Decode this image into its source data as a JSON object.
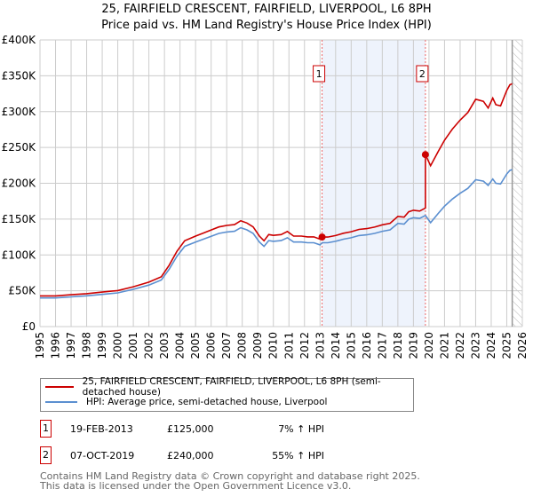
{
  "title_line1": "25, FAIRFIELD CRESCENT, FAIRFIELD, LIVERPOOL, L6 8PH",
  "title_line2": "Price paid vs. HM Land Registry's House Price Index (HPI)",
  "colors": {
    "property": "#cc0000",
    "hpi": "#5b8fd0",
    "shade": "#eef3fc",
    "grid": "#cccccc"
  },
  "legend": [
    {
      "label": "25, FAIRFIELD CRESCENT, FAIRFIELD, LIVERPOOL, L6 8PH (semi-detached house)"
    },
    {
      "label": "HPI: Average price, semi-detached house, Liverpool"
    }
  ],
  "sales": [
    {
      "num": "1",
      "date": "19-FEB-2013",
      "price": "£125,000",
      "hpi": "7% ↑ HPI"
    },
    {
      "num": "2",
      "date": "07-OCT-2019",
      "price": "£240,000",
      "hpi": "55% ↑ HPI"
    }
  ],
  "footer": [
    "Contains HM Land Registry data © Crown copyright and database right 2025.",
    "This data is licensed under the Open Government Licence v3.0."
  ],
  "chart_data": {
    "type": "line",
    "xlim": [
      1995,
      2026
    ],
    "ylim": [
      0,
      400000
    ],
    "x_ticks": [
      "1995",
      "1996",
      "1997",
      "1998",
      "1999",
      "2000",
      "2001",
      "2002",
      "2003",
      "2004",
      "2005",
      "2006",
      "2007",
      "2008",
      "2009",
      "2010",
      "2011",
      "2012",
      "2013",
      "2014",
      "2015",
      "2016",
      "2017",
      "2018",
      "2019",
      "2020",
      "2021",
      "2022",
      "2023",
      "2024",
      "2025",
      "2026"
    ],
    "y_ticks": [
      {
        "v": 0,
        "label": "£0"
      },
      {
        "v": 50000,
        "label": "£50K"
      },
      {
        "v": 100000,
        "label": "£100K"
      },
      {
        "v": 150000,
        "label": "£150K"
      },
      {
        "v": 200000,
        "label": "£200K"
      },
      {
        "v": 250000,
        "label": "£250K"
      },
      {
        "v": 300000,
        "label": "£300K"
      },
      {
        "v": 350000,
        "label": "£350K"
      },
      {
        "v": 400000,
        "label": "£400K"
      }
    ],
    "grid": true,
    "shaded_span": [
      2013.13,
      2019.77
    ],
    "forecast_hatch_from": 2025.35,
    "markers": [
      {
        "label": "1",
        "x": 2013.13,
        "y": 125000
      },
      {
        "label": "2",
        "x": 2019.77,
        "y": 240000
      }
    ],
    "series": [
      {
        "name": "property",
        "x": [
          1995,
          1996,
          1997,
          1998,
          1999,
          2000,
          2001,
          2002,
          2002.8,
          2003.3,
          2003.8,
          2004.3,
          2005,
          2005.5,
          2006,
          2006.5,
          2007,
          2007.5,
          2007.9,
          2008.3,
          2008.7,
          2009.1,
          2009.4,
          2009.7,
          2010,
          2010.5,
          2010.9,
          2011.3,
          2011.8,
          2012.2,
          2012.6,
          2013.0,
          2013.13,
          2013.5,
          2014,
          2014.5,
          2015,
          2015.5,
          2016,
          2016.5,
          2017,
          2017.5,
          2018,
          2018.4,
          2018.7,
          2019,
          2019.4,
          2019.77,
          2019.77,
          2020.1,
          2020.6,
          2021,
          2021.5,
          2022,
          2022.5,
          2023,
          2023.5,
          2023.8,
          2024.1,
          2024.3,
          2024.6,
          2025,
          2025.2,
          2025.35
        ],
        "values": [
          42800,
          42800,
          44400,
          46000,
          48200,
          50300,
          55600,
          62000,
          69600,
          85600,
          104900,
          119800,
          126300,
          130500,
          134800,
          139100,
          141200,
          142300,
          147700,
          144500,
          139100,
          126300,
          119800,
          128400,
          127300,
          128400,
          132700,
          126300,
          126300,
          125200,
          125200,
          122000,
          125000,
          125000,
          127100,
          130300,
          132400,
          135600,
          136700,
          138800,
          142000,
          144200,
          153800,
          152700,
          160200,
          162300,
          161300,
          165500,
          240000,
          224500,
          244600,
          260000,
          275600,
          288000,
          298800,
          317300,
          314300,
          305000,
          318900,
          309600,
          308000,
          329700,
          337500,
          339000
        ]
      },
      {
        "name": "hpi",
        "x": [
          1995,
          1996,
          1997,
          1998,
          1999,
          2000,
          2001,
          2002,
          2002.8,
          2003.3,
          2003.8,
          2004.3,
          2005,
          2005.5,
          2006,
          2006.5,
          2007,
          2007.5,
          2007.9,
          2008.3,
          2008.7,
          2009.1,
          2009.4,
          2009.7,
          2010,
          2010.5,
          2010.9,
          2011.3,
          2011.8,
          2012.2,
          2012.6,
          2013.0,
          2013.13,
          2013.5,
          2014,
          2014.5,
          2015,
          2015.5,
          2016,
          2016.5,
          2017,
          2017.5,
          2018,
          2018.4,
          2018.7,
          2019,
          2019.4,
          2019.77,
          2020.1,
          2020.6,
          2021,
          2021.5,
          2022,
          2022.5,
          2023,
          2023.5,
          2023.8,
          2024.1,
          2024.3,
          2024.6,
          2025,
          2025.2,
          2025.35
        ],
        "values": [
          40000,
          40000,
          41500,
          43000,
          45000,
          47000,
          52000,
          58000,
          65000,
          80000,
          98000,
          112000,
          118000,
          122000,
          126000,
          130000,
          132000,
          133000,
          138000,
          135000,
          130000,
          118000,
          112000,
          120000,
          119000,
          120000,
          124000,
          118000,
          118000,
          117000,
          117000,
          114000,
          117000,
          117000,
          119000,
          122000,
          124000,
          127000,
          128000,
          130000,
          133000,
          135000,
          144000,
          143000,
          150000,
          152000,
          151000,
          155000,
          145000,
          158000,
          168000,
          178000,
          186000,
          193000,
          205000,
          203000,
          197000,
          206000,
          200000,
          199000,
          213000,
          218000,
          219000
        ]
      }
    ]
  }
}
